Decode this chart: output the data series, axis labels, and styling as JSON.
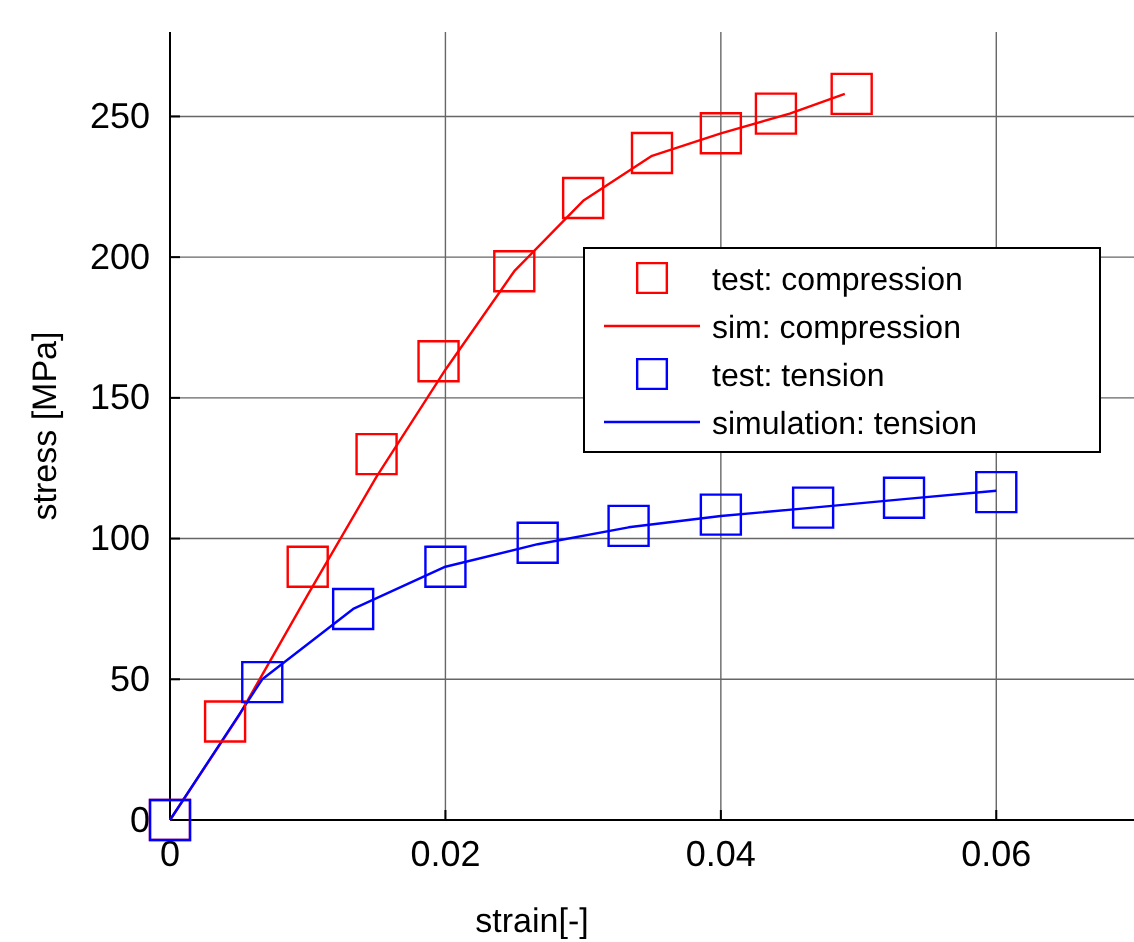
{
  "chart_data": {
    "type": "line",
    "xlabel": "strain[-]",
    "ylabel": "stress [MPa]",
    "xlim": [
      0,
      0.07
    ],
    "xticks": [
      0,
      0.02,
      0.04,
      0.06
    ],
    "ylim": [
      0,
      280
    ],
    "yticks": [
      0,
      50,
      100,
      150,
      200,
      250
    ],
    "grid": true,
    "legend": "right",
    "series": [
      {
        "name": "test: compression",
        "type": "scatter",
        "marker": "square",
        "color": "#ff0000",
        "x": [
          0,
          0.004,
          0.01,
          0.015,
          0.0195,
          0.025,
          0.03,
          0.035,
          0.04,
          0.044,
          0.0495
        ],
        "values": [
          0,
          35,
          90,
          130,
          163,
          195,
          221,
          237,
          244,
          251,
          258
        ]
      },
      {
        "name": "sim: compression",
        "marker": "none",
        "color": "#ff0000",
        "x": [
          0,
          0.005,
          0.01,
          0.015,
          0.02,
          0.025,
          0.03,
          0.035,
          0.04,
          0.045,
          0.049
        ],
        "values": [
          0,
          37,
          80,
          122,
          160,
          195,
          220,
          236,
          244,
          251,
          258
        ]
      },
      {
        "name": "test: tension",
        "type": "scatter",
        "marker": "square",
        "color": "#0000ff",
        "x": [
          0,
          0.0067,
          0.0133,
          0.02,
          0.0267,
          0.0333,
          0.04,
          0.0467,
          0.0533,
          0.06
        ],
        "values": [
          0,
          49,
          75,
          90,
          98.5,
          104.5,
          108.5,
          111,
          114.5,
          116.5
        ]
      },
      {
        "name": "simulation: tension",
        "marker": "none",
        "color": "#0000ff",
        "x": [
          0,
          0.0067,
          0.0133,
          0.02,
          0.0267,
          0.0333,
          0.04,
          0.0467,
          0.0533,
          0.06
        ],
        "values": [
          0,
          50,
          75,
          90,
          98,
          104,
          108,
          111,
          114,
          117
        ]
      }
    ]
  }
}
